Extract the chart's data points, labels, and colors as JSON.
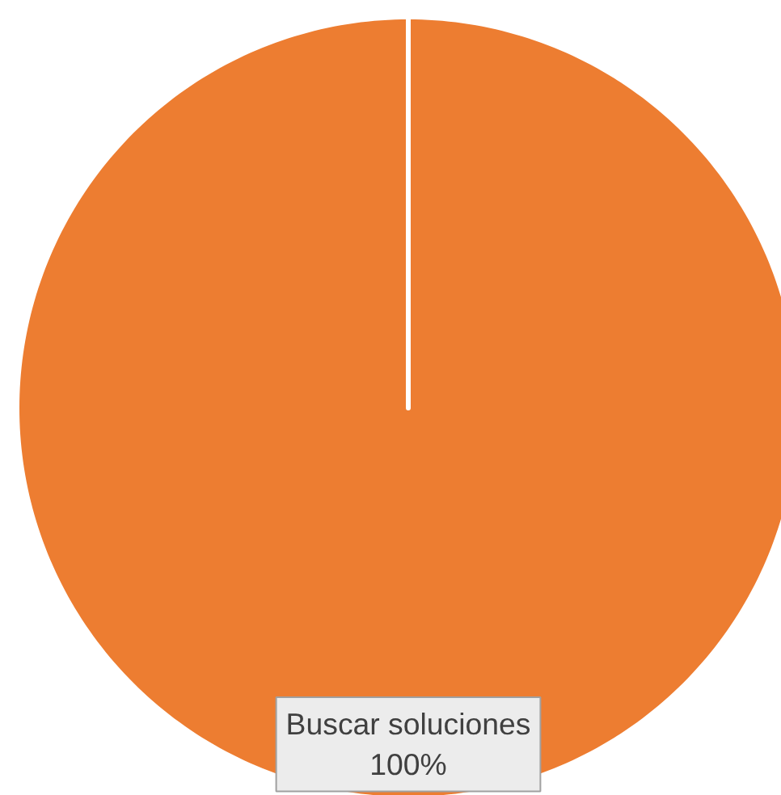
{
  "chart_data": {
    "type": "pie",
    "categories": [
      "Buscar soluciones"
    ],
    "values": [
      100
    ],
    "colors": [
      "#ed7d31"
    ],
    "value_labels": [
      "100%"
    ]
  }
}
